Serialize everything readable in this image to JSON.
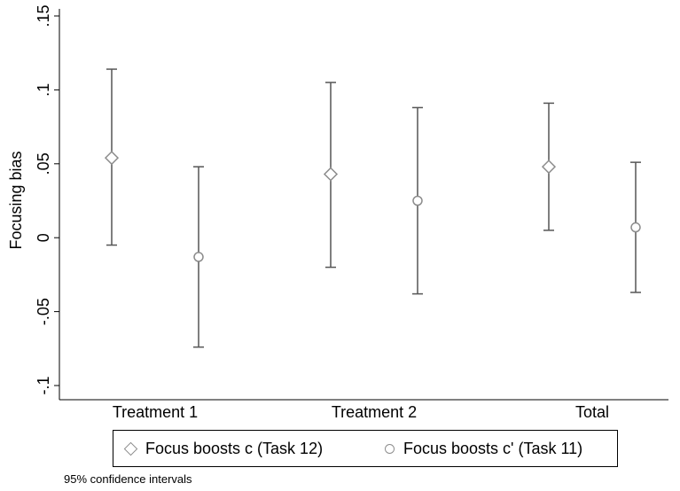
{
  "chart_data": {
    "type": "scatter",
    "subtype": "point-with-error-bars",
    "categories": [
      "Treatment 1",
      "Treatment 2",
      "Total"
    ],
    "ylabel": "Focusing bias",
    "xlabel": "",
    "ylim": [
      -0.1,
      0.15
    ],
    "yticks": [
      {
        "value": -0.1,
        "label": "-.1"
      },
      {
        "value": -0.05,
        "label": "-.05"
      },
      {
        "value": 0,
        "label": "0"
      },
      {
        "value": 0.05,
        "label": ".05"
      },
      {
        "value": 0.1,
        "label": ".1"
      },
      {
        "value": 0.15,
        "label": ".15"
      }
    ],
    "grid": false,
    "legend_placement": "bottom",
    "series": [
      {
        "name": "Focus boosts c (Task 12)",
        "marker": "diamond",
        "color": "#8c8c8c",
        "points": [
          {
            "category": "Treatment 1",
            "value": 0.054,
            "ci_low": -0.005,
            "ci_high": 0.114
          },
          {
            "category": "Treatment 2",
            "value": 0.043,
            "ci_low": -0.02,
            "ci_high": 0.105
          },
          {
            "category": "Total",
            "value": 0.048,
            "ci_low": 0.005,
            "ci_high": 0.091
          }
        ]
      },
      {
        "name": "Focus boosts c' (Task 11)",
        "marker": "circle",
        "color": "#8c8c8c",
        "points": [
          {
            "category": "Treatment 1",
            "value": -0.013,
            "ci_low": -0.074,
            "ci_high": 0.048
          },
          {
            "category": "Treatment 2",
            "value": 0.025,
            "ci_low": -0.038,
            "ci_high": 0.088
          },
          {
            "category": "Total",
            "value": 0.007,
            "ci_low": -0.037,
            "ci_high": 0.051
          }
        ]
      }
    ],
    "note": "95% confidence intervals"
  },
  "colors": {
    "marker": "#8c8c8c",
    "errorbar": "#555555",
    "axis": "#000000"
  }
}
